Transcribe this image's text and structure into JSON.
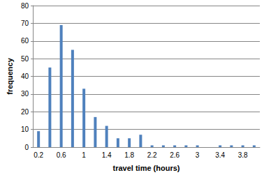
{
  "chart_data": {
    "type": "bar",
    "x_label": "travel time (hours)",
    "y_label": "frequency",
    "categories": [
      "0.2",
      null,
      "0.6",
      null,
      "1",
      null,
      "1.4",
      null,
      "1.8",
      null,
      "2.2",
      null,
      "2.6",
      null,
      "3",
      null,
      "3.4",
      null,
      "3.8",
      null
    ],
    "values": [
      9,
      45,
      69,
      55,
      33,
      17,
      12,
      5,
      5,
      7,
      1,
      1,
      1,
      1,
      1,
      0,
      1,
      1,
      1,
      1
    ],
    "color": "#4f81bd",
    "ylim": [
      0,
      80
    ],
    "yticks": [
      0,
      10,
      20,
      30,
      40,
      50,
      60,
      70,
      80
    ],
    "grid": true
  }
}
